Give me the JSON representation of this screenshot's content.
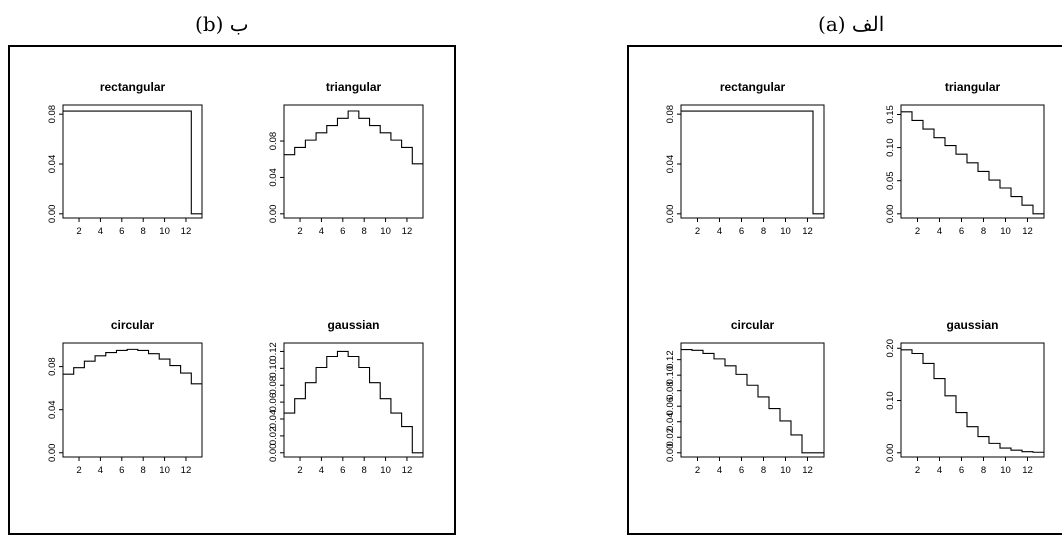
{
  "figure": {
    "left_caption": "ب (b)",
    "right_caption": "الف (a)"
  },
  "chart_data": [
    {
      "panel": "b",
      "type": "line",
      "title": "rectangular",
      "step": true,
      "x": [
        1,
        2,
        3,
        4,
        5,
        6,
        7,
        8,
        9,
        10,
        11,
        12,
        13
      ],
      "values": [
        0.0825,
        0.0825,
        0.0825,
        0.0825,
        0.0825,
        0.0825,
        0.0825,
        0.0825,
        0.0825,
        0.0825,
        0.0825,
        0.0825,
        0.0
      ],
      "xlim": [
        0.5,
        13.5
      ],
      "ylim": [
        0,
        0.084
      ],
      "xticks": [
        2,
        4,
        6,
        8,
        10,
        12
      ],
      "xtick_labels": [
        "2",
        "4",
        "6",
        "8",
        "10",
        "12"
      ],
      "yticks": [
        0,
        0.04,
        0.08
      ],
      "ytick_labels": [
        "0.00",
        "0.04",
        "0.08"
      ]
    },
    {
      "panel": "b",
      "type": "line",
      "title": "triangular",
      "step": true,
      "x": [
        1,
        2,
        3,
        4,
        5,
        6,
        7,
        8,
        9,
        10,
        11,
        12,
        13
      ],
      "values": [
        0.065,
        0.073,
        0.081,
        0.089,
        0.097,
        0.105,
        0.113,
        0.105,
        0.097,
        0.089,
        0.081,
        0.073,
        0.055
      ],
      "xlim": [
        0.5,
        13.5
      ],
      "ylim": [
        0,
        0.115
      ],
      "xticks": [
        2,
        4,
        6,
        8,
        10,
        12
      ],
      "xtick_labels": [
        "2",
        "4",
        "6",
        "8",
        "10",
        "12"
      ],
      "yticks": [
        0,
        0.04,
        0.08
      ],
      "ytick_labels": [
        "0.00",
        "0.04",
        "0.08"
      ]
    },
    {
      "panel": "b",
      "type": "line",
      "title": "circular",
      "step": true,
      "x": [
        1,
        2,
        3,
        4,
        5,
        6,
        7,
        8,
        9,
        10,
        11,
        12,
        13
      ],
      "values": [
        0.073,
        0.079,
        0.085,
        0.09,
        0.093,
        0.095,
        0.096,
        0.095,
        0.092,
        0.087,
        0.081,
        0.074,
        0.064
      ],
      "xlim": [
        0.5,
        13.5
      ],
      "ylim": [
        0,
        0.098
      ],
      "xticks": [
        2,
        4,
        6,
        8,
        10,
        12
      ],
      "xtick_labels": [
        "2",
        "4",
        "6",
        "8",
        "10",
        "12"
      ],
      "yticks": [
        0,
        0.04,
        0.08
      ],
      "ytick_labels": [
        "0.00",
        "0.04",
        "0.08"
      ]
    },
    {
      "panel": "b",
      "type": "line",
      "title": "gaussian",
      "step": true,
      "x": [
        1,
        2,
        3,
        4,
        5,
        6,
        7,
        8,
        9,
        10,
        11,
        12,
        13
      ],
      "values": [
        0.047,
        0.064,
        0.083,
        0.101,
        0.114,
        0.12,
        0.114,
        0.101,
        0.083,
        0.064,
        0.047,
        0.031,
        0.0
      ],
      "xlim": [
        0.5,
        13.5
      ],
      "ylim": [
        0,
        0.125
      ],
      "xticks": [
        2,
        4,
        6,
        8,
        10,
        12
      ],
      "xtick_labels": [
        "2",
        "4",
        "6",
        "8",
        "10",
        "12"
      ],
      "yticks": [
        0,
        0.02,
        0.04,
        0.06,
        0.08,
        0.1,
        0.12
      ],
      "ytick_labels": [
        "0.00",
        "0.02",
        "0.04",
        "0.06",
        "0.08",
        "0.10",
        "0.12"
      ]
    },
    {
      "panel": "a",
      "type": "line",
      "title": "rectangular",
      "step": true,
      "x": [
        1,
        2,
        3,
        4,
        5,
        6,
        7,
        8,
        9,
        10,
        11,
        12,
        13
      ],
      "values": [
        0.0825,
        0.0825,
        0.0825,
        0.0825,
        0.0825,
        0.0825,
        0.0825,
        0.0825,
        0.0825,
        0.0825,
        0.0825,
        0.0825,
        0.0
      ],
      "xlim": [
        0.5,
        13.5
      ],
      "ylim": [
        0,
        0.084
      ],
      "xticks": [
        2,
        4,
        6,
        8,
        10,
        12
      ],
      "xtick_labels": [
        "2",
        "4",
        "6",
        "8",
        "10",
        "12"
      ],
      "yticks": [
        0,
        0.04,
        0.08
      ],
      "ytick_labels": [
        "0.00",
        "0.04",
        "0.08"
      ]
    },
    {
      "panel": "a",
      "type": "line",
      "title": "triangular",
      "step": true,
      "x": [
        1,
        2,
        3,
        4,
        5,
        6,
        7,
        8,
        9,
        10,
        11,
        12,
        13
      ],
      "values": [
        0.154,
        0.141,
        0.128,
        0.115,
        0.103,
        0.09,
        0.077,
        0.064,
        0.051,
        0.039,
        0.026,
        0.013,
        0.0
      ],
      "xlim": [
        0.5,
        13.5
      ],
      "ylim": [
        0,
        0.158
      ],
      "xticks": [
        2,
        4,
        6,
        8,
        10,
        12
      ],
      "xtick_labels": [
        "2",
        "4",
        "6",
        "8",
        "10",
        "12"
      ],
      "yticks": [
        0,
        0.05,
        0.1,
        0.15
      ],
      "ytick_labels": [
        "0.00",
        "0.05",
        "0.10",
        "0.15"
      ]
    },
    {
      "panel": "a",
      "type": "line",
      "title": "circular",
      "step": true,
      "x": [
        1,
        2,
        3,
        4,
        5,
        6,
        7,
        8,
        9,
        10,
        11,
        12,
        13
      ],
      "values": [
        0.133,
        0.132,
        0.128,
        0.121,
        0.112,
        0.101,
        0.087,
        0.072,
        0.057,
        0.041,
        0.023,
        0.0,
        0.0
      ],
      "xlim": [
        0.5,
        13.5
      ],
      "ylim": [
        0,
        0.136
      ],
      "xticks": [
        2,
        4,
        6,
        8,
        10,
        12
      ],
      "xtick_labels": [
        "2",
        "4",
        "6",
        "8",
        "10",
        "12"
      ],
      "yticks": [
        0,
        0.02,
        0.04,
        0.06,
        0.08,
        0.1,
        0.12
      ],
      "ytick_labels": [
        "0.00",
        "0.02",
        "0.04",
        "0.06",
        "0.08",
        "0.10",
        "0.12"
      ]
    },
    {
      "panel": "a",
      "type": "line",
      "title": "gaussian",
      "step": true,
      "x": [
        1,
        2,
        3,
        4,
        5,
        6,
        7,
        8,
        9,
        10,
        11,
        12,
        13
      ],
      "values": [
        0.197,
        0.19,
        0.171,
        0.142,
        0.109,
        0.077,
        0.05,
        0.031,
        0.018,
        0.009,
        0.005,
        0.002,
        0.001
      ],
      "xlim": [
        0.5,
        13.5
      ],
      "ylim": [
        0,
        0.202
      ],
      "xticks": [
        2,
        4,
        6,
        8,
        10,
        12
      ],
      "xtick_labels": [
        "2",
        "4",
        "6",
        "8",
        "10",
        "12"
      ],
      "yticks": [
        0,
        0.1,
        0.2
      ],
      "ytick_labels": [
        "0.00",
        "0.10",
        "0.20"
      ]
    }
  ]
}
